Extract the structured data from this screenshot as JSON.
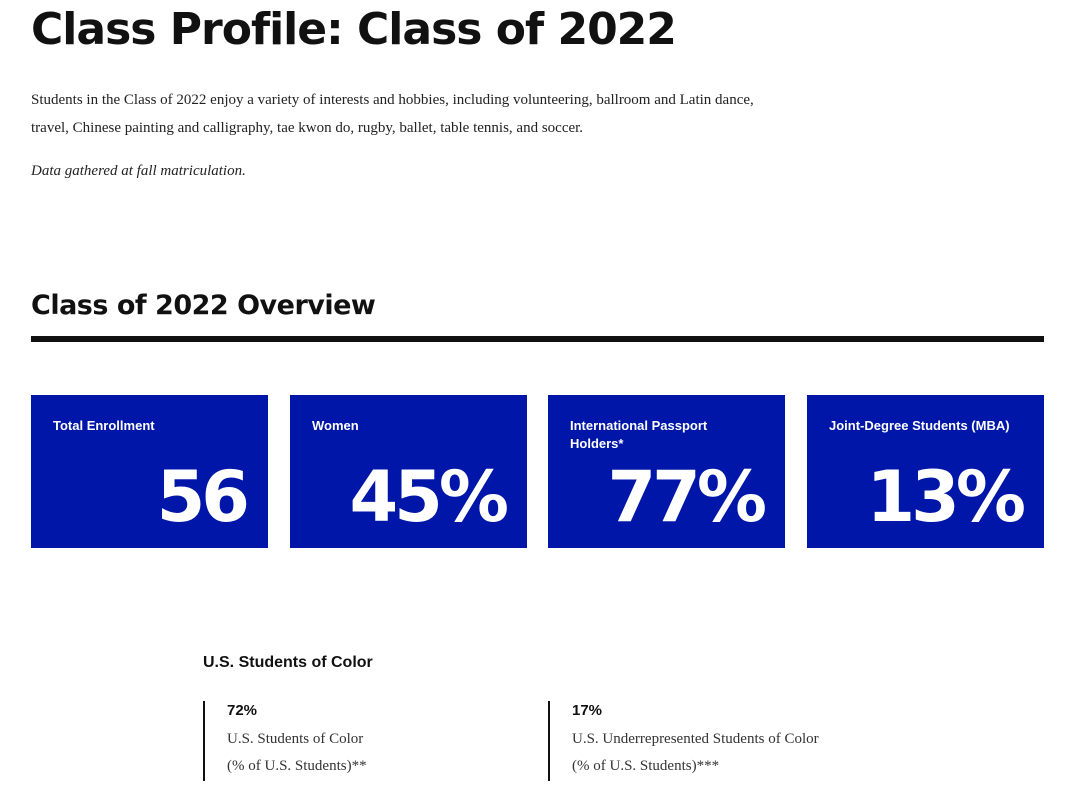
{
  "page": {
    "title": "Class Profile: Class of 2022",
    "intro": "Students in the Class of 2022 enjoy a variety of interests and hobbies, including volunteering, ballroom and Latin dance, travel, Chinese painting and calligraphy, tae kwon do, rugby, ballet, table tennis, and soccer.",
    "note": "Data gathered at fall matriculation."
  },
  "overview": {
    "title": "Class of 2022 Overview",
    "card_color": "#0016a8",
    "cards": [
      {
        "label": "Total Enrollment",
        "value": "56"
      },
      {
        "label": "Women",
        "value": "45%"
      },
      {
        "label": "International Passport Holders*",
        "value": "77%"
      },
      {
        "label": "Joint-Degree Students (MBA)",
        "value": "13%"
      }
    ]
  },
  "students_of_color": {
    "title": "U.S. Students of Color",
    "items": [
      {
        "value": "72%",
        "line1": "U.S. Students of Color",
        "line2": "(% of U.S. Students)**"
      },
      {
        "value": "17%",
        "line1": "U.S. Underrepresented Students of Color",
        "line2": "(% of U.S. Students)***"
      }
    ]
  }
}
